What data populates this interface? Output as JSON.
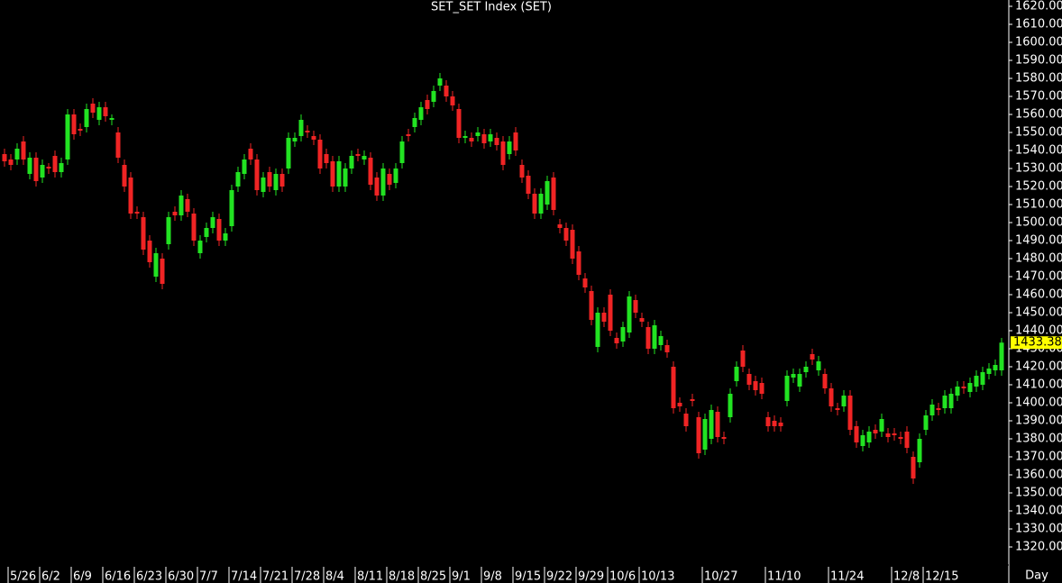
{
  "chart_data": {
    "type": "candlestick",
    "title": "SET_SET Index (SET)",
    "x_label": "Day",
    "categories": [
      null,
      "5/26",
      null,
      null,
      null,
      null,
      "6/2",
      null,
      null,
      null,
      null,
      "6/9",
      null,
      null,
      null,
      null,
      "6/16",
      null,
      null,
      null,
      null,
      "6/23",
      null,
      null,
      null,
      null,
      "6/30",
      null,
      null,
      null,
      null,
      "7/7",
      null,
      null,
      null,
      null,
      "7/14",
      null,
      null,
      null,
      null,
      "7/21",
      null,
      null,
      null,
      null,
      "7/28",
      null,
      null,
      null,
      null,
      "8/4",
      null,
      null,
      null,
      null,
      "8/11",
      null,
      null,
      null,
      null,
      "8/18",
      null,
      null,
      null,
      null,
      "8/25",
      null,
      null,
      null,
      null,
      "9/1",
      null,
      null,
      null,
      null,
      "9/8",
      null,
      null,
      null,
      null,
      "9/15",
      null,
      null,
      null,
      null,
      "9/22",
      null,
      null,
      null,
      null,
      "9/29",
      null,
      null,
      null,
      null,
      "10/6",
      null,
      null,
      null,
      null,
      "10/13",
      null,
      null,
      null,
      null,
      null,
      null,
      null,
      null,
      null,
      "10/27",
      null,
      null,
      null,
      null,
      null,
      null,
      null,
      null,
      null,
      "11/10",
      null,
      null,
      null,
      null,
      null,
      null,
      null,
      null,
      null,
      "11/24",
      null,
      null,
      null,
      null,
      null,
      null,
      null,
      null,
      null,
      "12/8",
      null,
      null,
      null,
      null,
      "12/15",
      null,
      null,
      null,
      null,
      null,
      null,
      null,
      null,
      null,
      null,
      null,
      null
    ],
    "open": [
      1538,
      1535,
      1535,
      1545,
      1527,
      1536,
      1525,
      1531,
      1537,
      1528,
      1535,
      1560,
      1552,
      1553,
      1566,
      1557,
      1564,
      1557,
      1550,
      1532,
      1525,
      1506,
      1503,
      1490,
      1470,
      1480,
      1488,
      1506,
      1504,
      1513,
      1505,
      1483,
      1492,
      1497,
      1502,
      1490,
      1498,
      1520,
      1527,
      1541,
      1535,
      1517,
      1528,
      1518,
      1527,
      1530,
      1545,
      1548,
      1551,
      1548,
      1546,
      1538,
      1534,
      1520,
      1520,
      1530,
      1538,
      1535,
      1536,
      1525,
      1515,
      1527,
      1522,
      1533,
      1549,
      1553,
      1557,
      1568,
      1567,
      1576,
      1576,
      1570,
      1563,
      1547,
      1547,
      1548,
      1549,
      1545,
      1547,
      1545,
      1538,
      1550,
      1532,
      1526,
      1516,
      1505,
      1510,
      1525,
      1499,
      1497,
      1496,
      1484,
      1469,
      1462,
      1431,
      1450,
      1460,
      1436,
      1434,
      1439,
      1457,
      1447,
      1442,
      1430,
      1432,
      1432,
      1420,
      1400,
      1394,
      1402,
      1392,
      1374,
      1380,
      1395,
      1381,
      1392,
      1412,
      1429,
      1416,
      1412,
      1411,
      1392,
      1390,
      1389,
      1401,
      1414,
      1409,
      1417,
      1427,
      1418,
      1416,
      1408,
      1397,
      1398,
      1404,
      1387,
      1376,
      1378,
      1385,
      1384,
      1383,
      1383,
      1381,
      1384,
      1370,
      1367,
      1385,
      1393,
      1397,
      1397,
      1397,
      1404,
      1409,
      1406,
      1409,
      1410,
      1416,
      1418,
      1418
    ],
    "high": [
      1541,
      1538,
      1544,
      1548,
      1539,
      1539,
      1535,
      1533,
      1540,
      1536,
      1563,
      1563,
      1555,
      1566,
      1569,
      1567,
      1567,
      1560,
      1553,
      1535,
      1528,
      1509,
      1506,
      1493,
      1486,
      1483,
      1506,
      1509,
      1518,
      1516,
      1508,
      1493,
      1500,
      1506,
      1505,
      1497,
      1521,
      1531,
      1538,
      1544,
      1538,
      1528,
      1531,
      1530,
      1530,
      1550,
      1550,
      1560,
      1554,
      1551,
      1549,
      1541,
      1537,
      1537,
      1533,
      1540,
      1541,
      1540,
      1539,
      1528,
      1533,
      1530,
      1533,
      1548,
      1552,
      1561,
      1567,
      1571,
      1576,
      1583,
      1579,
      1573,
      1566,
      1551,
      1550,
      1553,
      1552,
      1552,
      1550,
      1548,
      1548,
      1553,
      1535,
      1529,
      1519,
      1519,
      1526,
      1528,
      1502,
      1500,
      1499,
      1487,
      1472,
      1465,
      1453,
      1453,
      1463,
      1439,
      1445,
      1462,
      1460,
      1450,
      1445,
      1446,
      1440,
      1435,
      1423,
      1403,
      1397,
      1405,
      1395,
      1394,
      1399,
      1398,
      1384,
      1408,
      1423,
      1432,
      1419,
      1415,
      1414,
      1395,
      1393,
      1392,
      1418,
      1419,
      1419,
      1423,
      1430,
      1426,
      1419,
      1411,
      1400,
      1407,
      1407,
      1390,
      1385,
      1387,
      1388,
      1394,
      1386,
      1386,
      1384,
      1387,
      1373,
      1383,
      1396,
      1402,
      1400,
      1407,
      1408,
      1412,
      1412,
      1414,
      1418,
      1420,
      1422,
      1424,
      1436
    ],
    "low": [
      1531,
      1529,
      1532,
      1532,
      1524,
      1520,
      1522,
      1527,
      1525,
      1525,
      1532,
      1546,
      1548,
      1550,
      1558,
      1554,
      1556,
      1554,
      1533,
      1517,
      1502,
      1502,
      1482,
      1475,
      1467,
      1463,
      1485,
      1501,
      1501,
      1503,
      1487,
      1480,
      1489,
      1494,
      1487,
      1487,
      1495,
      1517,
      1524,
      1532,
      1515,
      1514,
      1517,
      1515,
      1517,
      1527,
      1542,
      1545,
      1547,
      1543,
      1527,
      1530,
      1517,
      1517,
      1517,
      1527,
      1534,
      1532,
      1518,
      1512,
      1512,
      1518,
      1519,
      1530,
      1545,
      1550,
      1554,
      1560,
      1564,
      1573,
      1567,
      1562,
      1544,
      1544,
      1542,
      1545,
      1541,
      1542,
      1540,
      1529,
      1535,
      1537,
      1522,
      1513,
      1502,
      1502,
      1507,
      1504,
      1494,
      1487,
      1477,
      1468,
      1461,
      1443,
      1428,
      1442,
      1437,
      1430,
      1431,
      1436,
      1447,
      1442,
      1427,
      1427,
      1429,
      1425,
      1394,
      1395,
      1384,
      1398,
      1369,
      1371,
      1377,
      1378,
      1377,
      1389,
      1409,
      1417,
      1407,
      1404,
      1402,
      1384,
      1384,
      1384,
      1398,
      1411,
      1406,
      1414,
      1421,
      1415,
      1405,
      1395,
      1393,
      1395,
      1382,
      1375,
      1373,
      1375,
      1380,
      1381,
      1378,
      1379,
      1377,
      1372,
      1355,
      1364,
      1382,
      1390,
      1393,
      1394,
      1394,
      1401,
      1405,
      1403,
      1406,
      1407,
      1413,
      1415,
      1415
    ],
    "close": [
      1534,
      1532,
      1541,
      1535,
      1536,
      1523,
      1532,
      1530,
      1528,
      1533,
      1560,
      1549,
      1551,
      1563,
      1561,
      1564,
      1559,
      1558,
      1536,
      1520,
      1505,
      1505,
      1485,
      1478,
      1483,
      1466,
      1503,
      1504,
      1515,
      1506,
      1490,
      1490,
      1497,
      1503,
      1490,
      1494,
      1518,
      1528,
      1535,
      1535,
      1518,
      1525,
      1520,
      1527,
      1520,
      1547,
      1547,
      1557,
      1550,
      1546,
      1530,
      1533,
      1520,
      1534,
      1530,
      1537,
      1537,
      1537,
      1521,
      1515,
      1530,
      1521,
      1530,
      1545,
      1548,
      1558,
      1564,
      1563,
      1573,
      1580,
      1570,
      1565,
      1547,
      1548,
      1545,
      1550,
      1544,
      1549,
      1543,
      1532,
      1545,
      1540,
      1525,
      1516,
      1505,
      1516,
      1523,
      1507,
      1497,
      1490,
      1480,
      1471,
      1464,
      1446,
      1450,
      1445,
      1440,
      1433,
      1442,
      1459,
      1450,
      1445,
      1430,
      1443,
      1437,
      1428,
      1397,
      1398,
      1387,
      1401,
      1372,
      1391,
      1396,
      1381,
      1380,
      1405,
      1420,
      1420,
      1410,
      1407,
      1405,
      1387,
      1387,
      1387,
      1415,
      1416,
      1416,
      1420,
      1424,
      1423,
      1408,
      1398,
      1396,
      1404,
      1385,
      1378,
      1382,
      1384,
      1383,
      1391,
      1381,
      1382,
      1380,
      1375,
      1358,
      1380,
      1393,
      1399,
      1396,
      1404,
      1405,
      1409,
      1408,
      1411,
      1415,
      1417,
      1419,
      1421,
      1433.38
    ],
    "up_color": "#22e322",
    "down_color": "#f02424",
    "last_price": 1433.38,
    "ylim": [
      1313,
      1623
    ],
    "yticks": [
      {
        "value": 1320,
        "label": "1320.00"
      },
      {
        "value": 1330,
        "label": "1330.00"
      },
      {
        "value": 1340,
        "label": "1340.00"
      },
      {
        "value": 1350,
        "label": "1350.00"
      },
      {
        "value": 1360,
        "label": "1360.00"
      },
      {
        "value": 1370,
        "label": "1370.00"
      },
      {
        "value": 1380,
        "label": "1380.00"
      },
      {
        "value": 1390,
        "label": "1390.00"
      },
      {
        "value": 1400,
        "label": "1400.00"
      },
      {
        "value": 1410,
        "label": "1410.00"
      },
      {
        "value": 1420,
        "label": "1420.00"
      },
      {
        "value": 1430,
        "label": "1430.00"
      },
      {
        "value": 1440,
        "label": "1440.00"
      },
      {
        "value": 1450,
        "label": "1450.00"
      },
      {
        "value": 1460,
        "label": "1460.00"
      },
      {
        "value": 1470,
        "label": "1470.00"
      },
      {
        "value": 1480,
        "label": "1480.00"
      },
      {
        "value": 1490,
        "label": "1490.00"
      },
      {
        "value": 1500,
        "label": "1500.00"
      },
      {
        "value": 1510,
        "label": "1510.00"
      },
      {
        "value": 1520,
        "label": "1520.00"
      },
      {
        "value": 1530,
        "label": "1530.00"
      },
      {
        "value": 1540,
        "label": "1540.00"
      },
      {
        "value": 1550,
        "label": "1550.00"
      },
      {
        "value": 1560,
        "label": "1560.00"
      },
      {
        "value": 1570,
        "label": "1570.00"
      },
      {
        "value": 1580,
        "label": "1580.00"
      },
      {
        "value": 1590,
        "label": "1590.00"
      },
      {
        "value": 1600,
        "label": "1600.00"
      },
      {
        "value": 1610,
        "label": "1610.00"
      },
      {
        "value": 1620,
        "label": "1620.00"
      }
    ]
  }
}
